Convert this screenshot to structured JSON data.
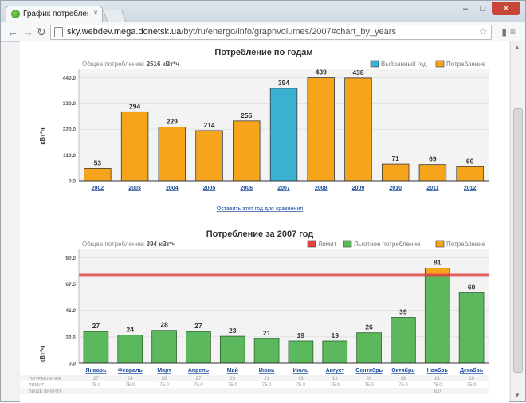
{
  "browser": {
    "tab_title": "График потребления <",
    "tab_close": "×",
    "url_host": "sky.webdev.mega.donetsk.ua",
    "url_path": "/byt/ru/energo/info/graphvolumes/2007#chart_by_years",
    "win_min": "–",
    "win_max": "□",
    "win_close": "✕"
  },
  "chart1": {
    "title": "Потребление по годам",
    "total_label": "Общее потребление:",
    "total_value": "2516 кВт*ч",
    "legend_selected": "Выбранный год",
    "legend_consumption": "Потребление",
    "ylabel": "кВт*ч",
    "compare_link": "Оставить этот год для сравнения",
    "colors": {
      "orange": "#f7a41d",
      "blue": "#3ab1d0"
    }
  },
  "chart2": {
    "title": "Потребление за 2007 год",
    "total_label": "Общее потребление:",
    "total_value": "394 кВт*ч",
    "legend_limit": "Лимит",
    "legend_preferential": "Льготное потребление",
    "legend_consumption": "Потребление",
    "ylabel": "кВт*ч",
    "row_labels": [
      "ПОТРЕБЛЕНИЕ",
      "ЛИМИТ",
      "ВЫШЕ ЛИМИТА"
    ],
    "colors": {
      "green": "#5cb85c",
      "orange": "#f7a41d",
      "red": "#e04646"
    }
  },
  "chart_data": [
    {
      "type": "bar",
      "title": "Потребление по годам",
      "ylabel": "кВт*ч",
      "categories": [
        "2002",
        "2003",
        "2004",
        "2005",
        "2006",
        "2007",
        "2008",
        "2009",
        "2010",
        "2011",
        "2012"
      ],
      "values": [
        53,
        294,
        229,
        214,
        255,
        394,
        439,
        438,
        71,
        69,
        60
      ],
      "selected": "2007",
      "yticks": [
        "0.0",
        "110.0",
        "220.0",
        "330.0",
        "440.0"
      ],
      "ylim": [
        0,
        475
      ]
    },
    {
      "type": "bar",
      "title": "Потребление за 2007 год",
      "ylabel": "кВт*ч",
      "categories": [
        "Январь",
        "Февраль",
        "Март",
        "Апрель",
        "Май",
        "Июнь",
        "Июль",
        "Август",
        "Сентябрь",
        "Октябрь",
        "Ноябрь",
        "Декабрь"
      ],
      "values": [
        27,
        24,
        28,
        27,
        23,
        21,
        19,
        19,
        26,
        39,
        81,
        60
      ],
      "value_labels": [
        "27",
        "24",
        "28",
        "27",
        "23",
        "21",
        "19",
        "19",
        "26",
        "39",
        "81",
        "60"
      ],
      "limit_labels": [
        "75.0",
        "75.0",
        "75.0",
        "75.0",
        "75.0",
        "75.0",
        "75.0",
        "75.0",
        "75.0",
        "75.0",
        "75.0",
        "75.0"
      ],
      "over_limit_labels": [
        "",
        "",
        "",
        "",
        "",
        "",
        "",
        "",
        "",
        "",
        "6.0",
        ""
      ],
      "limit": 75,
      "yticks": [
        "0.0",
        "22.5",
        "45.0",
        "67.5",
        "90.0"
      ],
      "ylim": [
        0,
        97
      ]
    }
  ]
}
